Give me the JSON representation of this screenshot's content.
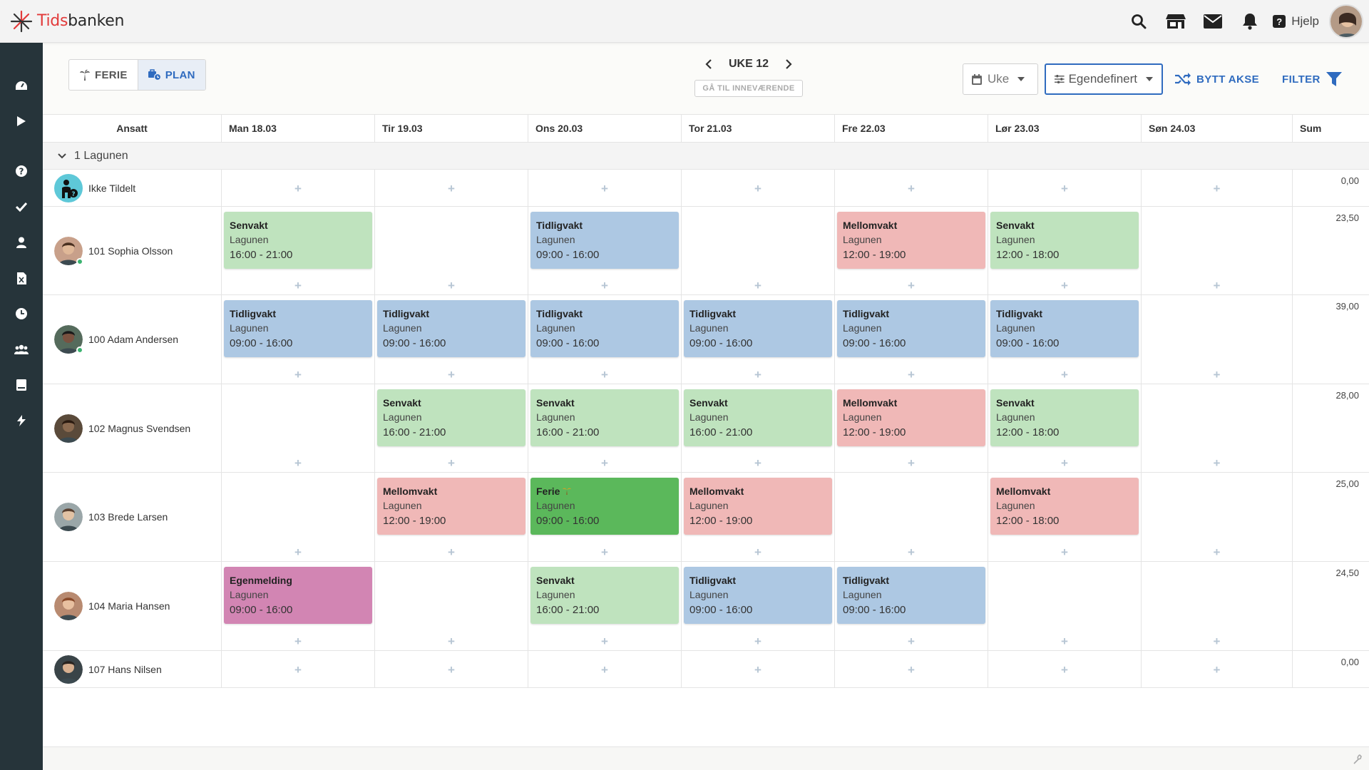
{
  "app": {
    "name_prefix": "Tids",
    "name_suffix": "banken"
  },
  "topbar": {
    "help_label": "Hjelp"
  },
  "view_toggle": {
    "ferie_label": "FERIE",
    "plan_label": "PLAN"
  },
  "week": {
    "label": "UKE 12",
    "goto_label": "GÅ TIL INNEVÆRENDE"
  },
  "controls": {
    "period_label": "Uke",
    "preset_label": "Egendefinert",
    "swap_axis_label": "BYTT AKSE",
    "filter_label": "FILTER"
  },
  "grid": {
    "employee_header": "Ansatt",
    "sum_header": "Sum",
    "days": [
      "Man 18.03",
      "Tir 19.03",
      "Ons 20.03",
      "Tor 21.03",
      "Fre 22.03",
      "Lør 23.03",
      "Søn 24.03"
    ],
    "group": {
      "label": "1 Lagunen"
    },
    "rows": [
      {
        "name": "Ikke Tildelt",
        "sum": "0,00",
        "shifts": [
          null,
          null,
          null,
          null,
          null,
          null,
          null
        ]
      },
      {
        "name": "101 Sophia Olsson",
        "sum": "23,50",
        "online": true,
        "shifts": [
          {
            "title": "Senvakt",
            "location": "Lagunen",
            "time": "16:00 - 21:00",
            "kind": "sen"
          },
          null,
          {
            "title": "Tidligvakt",
            "location": "Lagunen",
            "time": "09:00 - 16:00",
            "kind": "tidlig"
          },
          null,
          {
            "title": "Mellomvakt",
            "location": "Lagunen",
            "time": "12:00 - 19:00",
            "kind": "mellom"
          },
          {
            "title": "Senvakt",
            "location": "Lagunen",
            "time": "12:00 - 18:00",
            "kind": "sen"
          },
          null
        ]
      },
      {
        "name": "100 Adam Andersen",
        "sum": "39,00",
        "online": true,
        "shifts": [
          {
            "title": "Tidligvakt",
            "location": "Lagunen",
            "time": "09:00 - 16:00",
            "kind": "tidlig"
          },
          {
            "title": "Tidligvakt",
            "location": "Lagunen",
            "time": "09:00 - 16:00",
            "kind": "tidlig"
          },
          {
            "title": "Tidligvakt",
            "location": "Lagunen",
            "time": "09:00 - 16:00",
            "kind": "tidlig"
          },
          {
            "title": "Tidligvakt",
            "location": "Lagunen",
            "time": "09:00 - 16:00",
            "kind": "tidlig"
          },
          {
            "title": "Tidligvakt",
            "location": "Lagunen",
            "time": "09:00 - 16:00",
            "kind": "tidlig"
          },
          {
            "title": "Tidligvakt",
            "location": "Lagunen",
            "time": "09:00 - 16:00",
            "kind": "tidlig"
          },
          null
        ]
      },
      {
        "name": "102 Magnus Svendsen",
        "sum": "28,00",
        "shifts": [
          null,
          {
            "title": "Senvakt",
            "location": "Lagunen",
            "time": "16:00 - 21:00",
            "kind": "sen"
          },
          {
            "title": "Senvakt",
            "location": "Lagunen",
            "time": "16:00 - 21:00",
            "kind": "sen"
          },
          {
            "title": "Senvakt",
            "location": "Lagunen",
            "time": "16:00 - 21:00",
            "kind": "sen"
          },
          {
            "title": "Mellomvakt",
            "location": "Lagunen",
            "time": "12:00 - 19:00",
            "kind": "mellom"
          },
          {
            "title": "Senvakt",
            "location": "Lagunen",
            "time": "12:00 - 18:00",
            "kind": "sen"
          },
          null
        ]
      },
      {
        "name": "103 Brede Larsen",
        "sum": "25,00",
        "shifts": [
          null,
          {
            "title": "Mellomvakt",
            "location": "Lagunen",
            "time": "12:00 - 19:00",
            "kind": "mellom"
          },
          {
            "title": "Ferie",
            "location": "Lagunen",
            "time": "09:00 - 16:00",
            "kind": "ferie"
          },
          {
            "title": "Mellomvakt",
            "location": "Lagunen",
            "time": "12:00 - 19:00",
            "kind": "mellom"
          },
          null,
          {
            "title": "Mellomvakt",
            "location": "Lagunen",
            "time": "12:00 - 18:00",
            "kind": "mellom"
          },
          null
        ]
      },
      {
        "name": "104 Maria Hansen",
        "sum": "24,50",
        "shifts": [
          {
            "title": "Egenmelding",
            "location": "Lagunen",
            "time": "09:00 - 16:00",
            "kind": "egen"
          },
          null,
          {
            "title": "Senvakt",
            "location": "Lagunen",
            "time": "16:00 - 21:00",
            "kind": "sen"
          },
          {
            "title": "Tidligvakt",
            "location": "Lagunen",
            "time": "09:00 - 16:00",
            "kind": "tidlig"
          },
          {
            "title": "Tidligvakt",
            "location": "Lagunen",
            "time": "09:00 - 16:00",
            "kind": "tidlig"
          },
          null,
          null
        ]
      },
      {
        "name": "107 Hans Nilsen",
        "sum": "0,00",
        "shifts": [
          null,
          null,
          null,
          null,
          null,
          null,
          null
        ]
      }
    ]
  },
  "colors": {
    "sen": "#bfe3be",
    "tidlig": "#adc8e3",
    "mellom": "#f0b8b7",
    "ferie": "#5bb85b",
    "egen": "#d285b3",
    "accent": "#2f6bbf",
    "sidebar": "#26343a"
  },
  "icons": {
    "logo": "tidsbanken-starburst",
    "top": [
      "search-icon",
      "store-icon",
      "mail-icon",
      "bell-icon"
    ],
    "sidebar": [
      "dashboard-icon",
      "play-icon",
      "help-icon",
      "check-icon",
      "user-icon",
      "excel-icon",
      "clock-icon",
      "users-icon",
      "book-icon",
      "bolt-icon"
    ]
  }
}
